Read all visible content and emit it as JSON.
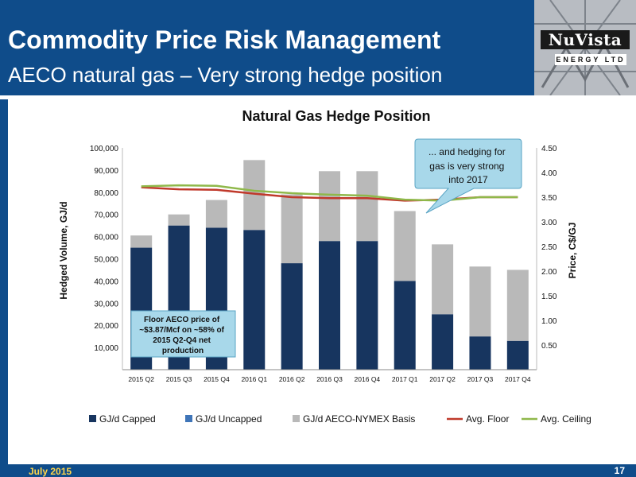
{
  "header": {
    "title": "Commodity Price Risk Management",
    "subtitle": "AECO natural gas – Very strong hedge position"
  },
  "logo": {
    "text": "NuVista",
    "sub": "ENERGY LTD"
  },
  "footer": {
    "date": "July 2015",
    "page": "17"
  },
  "colors": {
    "header": "#0f4c8a",
    "capped": "#17355f",
    "uncapped": "#3f75b8",
    "basis": "#b9b9b9",
    "floor": "#c0392b",
    "ceiling": "#8fb84a",
    "callout": "#a8d8ea"
  },
  "chart_data": {
    "type": "bar",
    "title": "Natural Gas Hedge Position",
    "ylabel": "Hedged Volume, GJ/d",
    "y2label": "Price, C$/GJ",
    "ylim": [
      0,
      100000
    ],
    "y2lim": [
      0,
      4.5
    ],
    "yticks": [
      "10,000",
      "20,000",
      "30,000",
      "40,000",
      "50,000",
      "60,000",
      "70,000",
      "80,000",
      "90,000",
      "100,000"
    ],
    "y2ticks": [
      "0.50",
      "1.00",
      "1.50",
      "2.00",
      "2.50",
      "3.00",
      "3.50",
      "4.00",
      "4.50"
    ],
    "categories": [
      "2015 Q2",
      "2015 Q3",
      "2015 Q4",
      "2016 Q1",
      "2016 Q2",
      "2016 Q3",
      "2016 Q4",
      "2017 Q1",
      "2017 Q2",
      "2017 Q3",
      "2017 Q4"
    ],
    "series": [
      {
        "name": "GJ/d Capped",
        "type": "bar",
        "stack": true,
        "values": [
          55000,
          65000,
          64000,
          63000,
          48000,
          58000,
          58000,
          40000,
          25000,
          15000,
          13000
        ]
      },
      {
        "name": "GJ/d Uncapped",
        "type": "bar",
        "stack": true,
        "values": [
          0,
          0,
          0,
          0,
          0,
          0,
          0,
          0,
          0,
          0,
          0
        ]
      },
      {
        "name": "GJ/d AECO-NYMEX Basis",
        "type": "bar",
        "stack": true,
        "values": [
          5500,
          5000,
          12500,
          31500,
          31000,
          31500,
          31500,
          31500,
          31500,
          31500,
          32000
        ]
      },
      {
        "name": "Avg. Floor",
        "type": "line",
        "axis": "right",
        "values": [
          3.7,
          3.66,
          3.65,
          3.57,
          3.5,
          3.48,
          3.48,
          3.43,
          3.45,
          3.5,
          3.5
        ]
      },
      {
        "name": "Avg. Ceiling",
        "type": "line",
        "axis": "right",
        "values": [
          3.72,
          3.74,
          3.73,
          3.63,
          3.58,
          3.55,
          3.53,
          3.45,
          3.43,
          3.5,
          3.5
        ]
      }
    ],
    "legend_position": "bottom",
    "annotations": {
      "callout": "... and hedging for gas is very strong into 2017",
      "floor_note": "Floor AECO price of ~$3.87/Mcf on ~58% of 2015 Q2-Q4 net production"
    }
  }
}
